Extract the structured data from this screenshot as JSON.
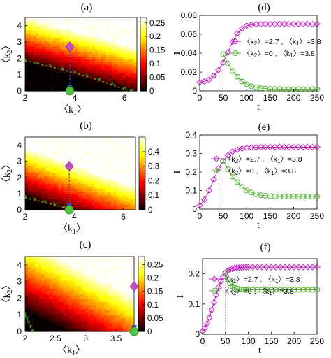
{
  "chart_data": [
    {
      "panel": "(a)",
      "type": "heatmap",
      "xlabel": "〈k1〉",
      "ylabel": "〈k2〉",
      "xlim": [
        2,
        6.5
      ],
      "ylim": [
        0,
        4.5
      ],
      "xticks": [
        "2",
        "4",
        "6"
      ],
      "yticks": [
        "0",
        "1",
        "2",
        "3",
        "4"
      ],
      "colorbar_ticks": [
        "0",
        "0.05",
        "0.1",
        "0.15",
        "0.2",
        "0.25"
      ],
      "colorbar_range": [
        0,
        0.27
      ],
      "threshold_curve": {
        "x": [
          2.0,
          2.5,
          3.0,
          3.5,
          4.0,
          4.5,
          5.0,
          5.5,
          6.0,
          6.3
        ],
        "y": [
          1.85,
          1.68,
          1.5,
          1.3,
          1.1,
          0.88,
          0.64,
          0.38,
          0.1,
          0.0
        ]
      },
      "arrow": {
        "from": [
          3.8,
          2.7
        ],
        "to": [
          3.8,
          0
        ]
      }
    },
    {
      "panel": "(b)",
      "type": "heatmap",
      "xlabel": "〈k1〉",
      "ylabel": "〈k2〉",
      "xlim": [
        2,
        6.5
      ],
      "ylim": [
        0,
        4.5
      ],
      "xticks": [
        "2",
        "4",
        "6"
      ],
      "yticks": [
        "0",
        "1",
        "2",
        "3",
        "4"
      ],
      "colorbar_ticks": [
        "0",
        "0.1",
        "0.2",
        "0.3",
        "0.4"
      ],
      "colorbar_range": [
        0,
        0.5
      ],
      "threshold_curve": {
        "x": [
          2.0,
          2.4,
          2.8,
          3.2,
          3.6,
          3.9
        ],
        "y": [
          0.75,
          0.6,
          0.45,
          0.3,
          0.14,
          0.0
        ]
      },
      "arrow": {
        "from": [
          3.8,
          2.7
        ],
        "to": [
          3.8,
          0
        ]
      }
    },
    {
      "panel": "(c)",
      "type": "heatmap",
      "xlabel": "〈k1〉",
      "ylabel": "〈k2〉",
      "xlim": [
        2,
        3.8
      ],
      "ylim": [
        0,
        4.5
      ],
      "xticks": [
        "2",
        "2.5",
        "3",
        "3.5"
      ],
      "yticks": [
        "0",
        "1",
        "2",
        "3",
        "4"
      ],
      "colorbar_ticks": [
        "0",
        "0.05",
        "0.1",
        "0.15",
        "0.2",
        "0.25"
      ],
      "colorbar_range": [
        0,
        0.28
      ],
      "threshold_curve": {
        "x": [
          2.0,
          2.03,
          2.06,
          2.09,
          2.12
        ],
        "y": [
          1.0,
          0.75,
          0.5,
          0.25,
          0.0
        ]
      },
      "arrow": {
        "from": [
          3.8,
          2.7
        ],
        "to": [
          3.8,
          0
        ]
      }
    },
    {
      "panel": "(d)",
      "type": "line",
      "xlabel": "t",
      "ylabel": "I",
      "xlim": [
        0,
        250
      ],
      "ylim": [
        0,
        0.08
      ],
      "xticks": [
        "0",
        "50",
        "100",
        "150",
        "200",
        "250"
      ],
      "yticks": [
        "0",
        "0.02",
        "0.04",
        "0.06",
        "0.08"
      ],
      "switch_time": 50,
      "series": [
        {
          "name": "〈k2〉=2.7 , 〈k1〉=3.8",
          "marker": "diamond",
          "color": "#c020c0",
          "x": [
            0,
            10,
            20,
            30,
            40,
            50,
            60,
            70,
            80,
            90,
            100,
            110,
            120,
            130,
            140,
            150,
            160,
            170,
            180,
            190,
            200,
            210,
            220,
            230,
            240,
            250
          ],
          "y": [
            0.009,
            0.01,
            0.012,
            0.016,
            0.022,
            0.03,
            0.041,
            0.052,
            0.061,
            0.066,
            0.069,
            0.07,
            0.0705,
            0.0707,
            0.0708,
            0.0708,
            0.0707,
            0.0708,
            0.0709,
            0.0707,
            0.0708,
            0.0709,
            0.0707,
            0.0708,
            0.0706,
            0.0708
          ]
        },
        {
          "name": "〈k2〉=0 , 〈k1〉=3.8",
          "marker": "circle",
          "color": "#50b030",
          "x": [
            50,
            60,
            70,
            80,
            90,
            100,
            110,
            120,
            130,
            140,
            150,
            160,
            170,
            180,
            190,
            200,
            210,
            220,
            230,
            240,
            250
          ],
          "y": [
            0.039,
            0.029,
            0.021,
            0.015,
            0.01,
            0.007,
            0.005,
            0.004,
            0.003,
            0.0025,
            0.002,
            0.002,
            0.002,
            0.0018,
            0.0018,
            0.0018,
            0.0018,
            0.0018,
            0.0018,
            0.0018,
            0.0018
          ]
        }
      ]
    },
    {
      "panel": "(e)",
      "type": "line",
      "xlabel": "t",
      "ylabel": "I",
      "xlim": [
        0,
        250
      ],
      "ylim": [
        0,
        0.4
      ],
      "xticks": [
        "0",
        "50",
        "100",
        "150",
        "200",
        "250"
      ],
      "yticks": [
        "0",
        "0.1",
        "0.2",
        "0.3",
        "0.4"
      ],
      "switch_time": 50,
      "series": [
        {
          "name": "〈k2〉=2.7 , 〈k1〉=3.8",
          "marker": "diamond",
          "color": "#c020c0",
          "x": [
            0,
            10,
            20,
            30,
            40,
            50,
            60,
            70,
            80,
            90,
            100,
            110,
            120,
            130,
            140,
            150,
            160,
            170,
            180,
            190,
            200,
            210,
            220,
            230,
            240,
            250
          ],
          "y": [
            0.02,
            0.05,
            0.1,
            0.16,
            0.22,
            0.26,
            0.29,
            0.31,
            0.32,
            0.327,
            0.33,
            0.332,
            0.333,
            0.334,
            0.334,
            0.334,
            0.334,
            0.335,
            0.334,
            0.334,
            0.334,
            0.335,
            0.334,
            0.334,
            0.334,
            0.334
          ]
        },
        {
          "name": "〈k2〉=0 , 〈k1〉=3.8",
          "marker": "circle",
          "color": "#50b030",
          "x": [
            50,
            60,
            70,
            80,
            90,
            100,
            110,
            120,
            130,
            140,
            150,
            160,
            170,
            180,
            190,
            200,
            210,
            220,
            230,
            240,
            250
          ],
          "y": [
            0.26,
            0.215,
            0.175,
            0.145,
            0.12,
            0.1,
            0.09,
            0.08,
            0.075,
            0.072,
            0.07,
            0.069,
            0.068,
            0.068,
            0.068,
            0.068,
            0.068,
            0.068,
            0.068,
            0.068,
            0.068
          ]
        }
      ]
    },
    {
      "panel": "(f)",
      "type": "line",
      "xlabel": "t",
      "ylabel": "I",
      "xlim": [
        0,
        250
      ],
      "ylim": [
        0,
        0.25
      ],
      "xticks": [
        "0",
        "50",
        "100",
        "150",
        "200",
        "250"
      ],
      "yticks": [
        "0",
        "0.1",
        "0.2"
      ],
      "switch_time": 50,
      "series": [
        {
          "name": "〈k2〉=2.7 , 〈k1〉=3.8",
          "marker": "diamond",
          "color": "#c020c0",
          "x": [
            0,
            5,
            10,
            15,
            20,
            25,
            30,
            35,
            40,
            45,
            50,
            55,
            60,
            65,
            70,
            75,
            80,
            85,
            90,
            95,
            100,
            110,
            120,
            130,
            140,
            150,
            160,
            170,
            180,
            190,
            200,
            210,
            220,
            230,
            240,
            250
          ],
          "y": [
            0.01,
            0.02,
            0.035,
            0.055,
            0.08,
            0.105,
            0.13,
            0.155,
            0.175,
            0.19,
            0.203,
            0.21,
            0.214,
            0.217,
            0.219,
            0.22,
            0.221,
            0.221,
            0.222,
            0.222,
            0.222,
            0.222,
            0.222,
            0.222,
            0.222,
            0.222,
            0.222,
            0.222,
            0.222,
            0.222,
            0.222,
            0.222,
            0.222,
            0.222,
            0.222,
            0.222
          ]
        },
        {
          "name": "〈k2〉=0 , 〈k1〉=3.8",
          "marker": "circle",
          "color": "#50b030",
          "x": [
            50,
            55,
            60,
            65,
            70,
            75,
            80,
            85,
            90,
            95,
            100,
            110,
            120,
            130,
            140,
            150,
            160,
            170,
            180,
            190,
            200,
            210,
            220,
            230,
            240,
            250
          ],
          "y": [
            0.203,
            0.182,
            0.168,
            0.159,
            0.154,
            0.151,
            0.149,
            0.148,
            0.147,
            0.147,
            0.147,
            0.147,
            0.147,
            0.147,
            0.147,
            0.147,
            0.147,
            0.147,
            0.147,
            0.147,
            0.147,
            0.147,
            0.147,
            0.147,
            0.147,
            0.147
          ]
        }
      ]
    }
  ]
}
